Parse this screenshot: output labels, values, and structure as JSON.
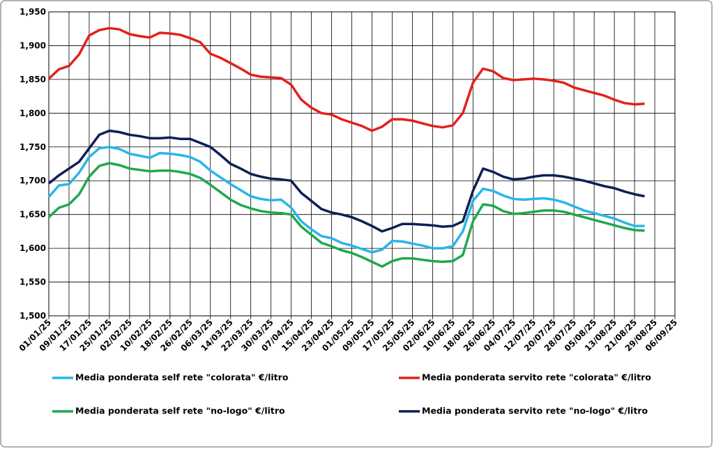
{
  "chart_data": {
    "type": "line",
    "x": [
      "01/01/25",
      "05/01/25",
      "09/01/25",
      "13/01/25",
      "17/01/25",
      "21/01/25",
      "25/01/25",
      "29/01/25",
      "02/02/25",
      "06/02/25",
      "10/02/25",
      "14/02/25",
      "18/02/25",
      "22/02/25",
      "26/02/25",
      "02/03/25",
      "06/03/25",
      "10/03/25",
      "14/03/25",
      "18/03/25",
      "22/03/25",
      "26/03/25",
      "30/03/25",
      "03/04/25",
      "07/04/25",
      "11/04/25",
      "15/04/25",
      "19/04/25",
      "23/04/25",
      "27/04/25",
      "01/05/25",
      "05/05/25",
      "09/05/25",
      "13/05/25",
      "17/05/25",
      "21/05/25",
      "25/05/25",
      "29/05/25",
      "02/06/25",
      "06/06/25",
      "10/06/25",
      "14/06/25",
      "18/06/25",
      "22/06/25",
      "26/06/25",
      "30/06/25",
      "04/07/25",
      "08/07/25",
      "12/07/25",
      "16/07/25",
      "20/07/25",
      "24/07/25",
      "28/07/25",
      "01/08/25",
      "05/08/25",
      "09/08/25",
      "13/08/25",
      "17/08/25",
      "21/08/25",
      "25/08/25"
    ],
    "xlim": [
      "01/01/25",
      "06/09/25"
    ],
    "xticks": [
      "01/01/25",
      "09/01/25",
      "17/01/25",
      "25/01/25",
      "02/02/25",
      "10/02/25",
      "18/02/25",
      "26/02/25",
      "06/03/25",
      "14/03/25",
      "22/03/25",
      "30/03/25",
      "07/04/25",
      "15/04/25",
      "23/04/25",
      "01/05/25",
      "09/05/25",
      "17/05/25",
      "25/05/25",
      "02/06/25",
      "10/06/25",
      "18/06/25",
      "26/06/25",
      "04/07/25",
      "12/07/25",
      "20/07/25",
      "28/07/25",
      "05/08/25",
      "13/08/25",
      "21/08/25",
      "29/08/25",
      "06/09/25"
    ],
    "ylim": [
      1500,
      1950
    ],
    "yticks": [
      {
        "value": 1500,
        "label": "1,500"
      },
      {
        "value": 1550,
        "label": "1,550"
      },
      {
        "value": 1600,
        "label": "1,600"
      },
      {
        "value": 1650,
        "label": "1,650"
      },
      {
        "value": 1700,
        "label": "1,700"
      },
      {
        "value": 1750,
        "label": "1,750"
      },
      {
        "value": 1800,
        "label": "1,800"
      },
      {
        "value": 1850,
        "label": "1,850"
      },
      {
        "value": 1900,
        "label": "1,900"
      },
      {
        "value": 1950,
        "label": "1,950"
      }
    ],
    "grid": true,
    "series": [
      {
        "name": "Media ponderata self rete \"colorata\" €/litro",
        "color": "#29b6e8",
        "values": [
          1676,
          1693,
          1695,
          1712,
          1735,
          1748,
          1750,
          1747,
          1740,
          1737,
          1734,
          1741,
          1740,
          1738,
          1735,
          1728,
          1715,
          1705,
          1695,
          1686,
          1677,
          1673,
          1671,
          1672,
          1660,
          1640,
          1628,
          1618,
          1615,
          1608,
          1604,
          1599,
          1594,
          1598,
          1611,
          1610,
          1607,
          1604,
          1600,
          1600,
          1603,
          1625,
          1670,
          1688,
          1685,
          1678,
          1673,
          1672,
          1673,
          1674,
          1672,
          1668,
          1662,
          1656,
          1652,
          1648,
          1644,
          1638,
          1633,
          1633
        ]
      },
      {
        "name": "Media ponderata servito rete \"colorata\" €/litro",
        "color": "#e3201b",
        "values": [
          1851,
          1865,
          1870,
          1887,
          1915,
          1923,
          1926,
          1924,
          1917,
          1914,
          1912,
          1919,
          1918,
          1916,
          1911,
          1905,
          1888,
          1882,
          1874,
          1866,
          1857,
          1854,
          1853,
          1852,
          1842,
          1820,
          1808,
          1800,
          1798,
          1791,
          1786,
          1781,
          1774,
          1780,
          1791,
          1791,
          1789,
          1785,
          1781,
          1779,
          1782,
          1800,
          1845,
          1866,
          1862,
          1852,
          1849,
          1850,
          1851,
          1850,
          1848,
          1845,
          1838,
          1834,
          1830,
          1826,
          1820,
          1815,
          1813,
          1814
        ]
      },
      {
        "name": "Media ponderata self rete \"no-logo\" €/litro",
        "color": "#1fa84f",
        "values": [
          1646,
          1660,
          1665,
          1680,
          1706,
          1722,
          1726,
          1723,
          1718,
          1716,
          1714,
          1715,
          1715,
          1713,
          1710,
          1704,
          1694,
          1683,
          1672,
          1664,
          1659,
          1655,
          1653,
          1652,
          1650,
          1632,
          1620,
          1608,
          1603,
          1597,
          1593,
          1587,
          1580,
          1573,
          1581,
          1585,
          1585,
          1583,
          1581,
          1580,
          1581,
          1590,
          1640,
          1665,
          1663,
          1655,
          1651,
          1652,
          1654,
          1656,
          1656,
          1654,
          1650,
          1646,
          1642,
          1638,
          1634,
          1630,
          1627,
          1626
        ]
      },
      {
        "name": "Media ponderata servito rete \"no-logo\" €/litro",
        "color": "#0d1f55",
        "values": [
          1696,
          1708,
          1718,
          1728,
          1748,
          1768,
          1774,
          1772,
          1768,
          1766,
          1763,
          1763,
          1764,
          1762,
          1762,
          1756,
          1750,
          1738,
          1725,
          1718,
          1710,
          1706,
          1703,
          1702,
          1700,
          1682,
          1670,
          1658,
          1653,
          1650,
          1646,
          1640,
          1633,
          1625,
          1630,
          1636,
          1636,
          1635,
          1634,
          1632,
          1633,
          1640,
          1685,
          1718,
          1713,
          1706,
          1702,
          1703,
          1706,
          1708,
          1708,
          1706,
          1703,
          1700,
          1696,
          1692,
          1689,
          1684,
          1680,
          1677
        ]
      }
    ]
  }
}
